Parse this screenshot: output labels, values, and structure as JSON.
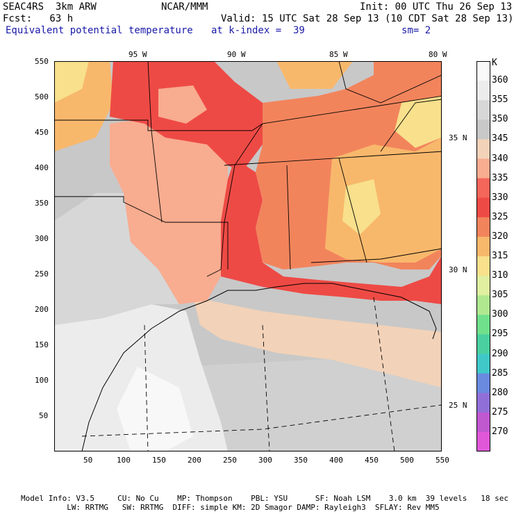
{
  "header": {
    "left1": "SEAC4RS  3km ARW",
    "center1": "NCAR/MMM",
    "right1": "Init: 00 UTC Thu 26 Sep 13",
    "left2": "Fcst:   63 h",
    "right2": "Valid: 15 UTC Sat 28 Sep 13 (10 CDT Sat 28 Sep 13)",
    "field": "Equivalent potential temperature",
    "kindex": "at k-index =  39",
    "smooth": "sm= 2"
  },
  "axes": {
    "top_lon": [
      "95 W",
      "90 W",
      "85 W",
      "80 W"
    ],
    "right_lat": [
      "35 N",
      "30 N",
      "25 N"
    ],
    "left_ticks": [
      "550",
      "500",
      "450",
      "400",
      "350",
      "300",
      "250",
      "200",
      "150",
      "100",
      "50"
    ],
    "bottom_ticks": [
      "50",
      "100",
      "150",
      "200",
      "250",
      "300",
      "350",
      "400",
      "450",
      "500",
      "550"
    ]
  },
  "legend": {
    "unit": "K",
    "levels": [
      "360",
      "355",
      "350",
      "345",
      "340",
      "335",
      "330",
      "325",
      "320",
      "315",
      "310",
      "305",
      "300",
      "295",
      "290",
      "285",
      "280",
      "275",
      "270"
    ],
    "colors": [
      "#fafafa",
      "#ececec",
      "#d7d7d7",
      "#c8c8c8",
      "#f2d2b8",
      "#f8ac90",
      "#f4655a",
      "#ee4a45",
      "#f2845c",
      "#f8b86c",
      "#f8e08c",
      "#e0f0a0",
      "#b0e890",
      "#70e08c",
      "#4ad0a0",
      "#40c8c8",
      "#6a8ae0",
      "#9070d8",
      "#c058d0",
      "#e058d8"
    ]
  },
  "footer": {
    "line1": "Model Info: V3.5     CU: No Cu    MP: Thompson    PBL: YSU      SF: Noah LSM    3.0 km  39 levels   18 sec",
    "line2": "          LW: RRTMG   SW: RRTMG  DIFF: simple KM: 2D Smagor DAMP: Rayleigh3  SFLAY: Rev MM5"
  }
}
